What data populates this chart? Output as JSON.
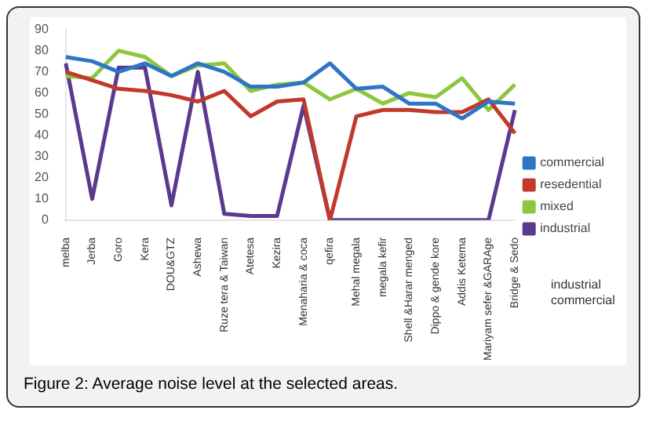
{
  "chart_data": {
    "type": "line",
    "categories": [
      "melba",
      "Jerba",
      "Goro",
      "Kera",
      "DOU&GTZ",
      "Ashewa",
      "Ruze tera & Taiwan",
      "Atetesa",
      "Kezira",
      "Menaharia & coca",
      "qefira",
      "Mehal megala",
      "megala kefir",
      "Shell &Harar menged",
      "Dippo & gende kore",
      "Addis Ketema",
      "Mariyam sefer &GARAge",
      "Bridge & Sedo"
    ],
    "series": [
      {
        "name": "commercial",
        "color": "#2e75c6",
        "values": [
          77,
          75,
          70,
          74,
          68,
          74,
          70,
          63,
          63,
          65,
          74,
          62,
          63,
          55,
          55,
          48,
          56,
          55
        ]
      },
      {
        "name": "resedential",
        "color": "#c0392b",
        "values": [
          70,
          66,
          62,
          61,
          59,
          56,
          61,
          49,
          56,
          57,
          0,
          49,
          52,
          52,
          51,
          51,
          57,
          41
        ]
      },
      {
        "name": "mixed",
        "color": "#8dc63f",
        "values": [
          68,
          67,
          80,
          77,
          68,
          73,
          74,
          61,
          64,
          65,
          57,
          62,
          55,
          60,
          58,
          67,
          52,
          64
        ]
      },
      {
        "name": "industrial",
        "color": "#5b3a8e",
        "values": [
          74,
          10,
          72,
          72,
          7,
          70,
          3,
          2,
          2,
          54,
          0,
          0,
          0,
          0,
          0,
          0,
          0,
          52
        ]
      }
    ],
    "ylim": [
      0,
      90
    ],
    "yticks": [
      0,
      10,
      20,
      30,
      40,
      50,
      60,
      70,
      80,
      90
    ],
    "grid": false,
    "legend": "right",
    "marker": "none",
    "annotations": [
      "industrial",
      "commercial",
      "Figure 2: Average noise level at the selected areas."
    ]
  }
}
